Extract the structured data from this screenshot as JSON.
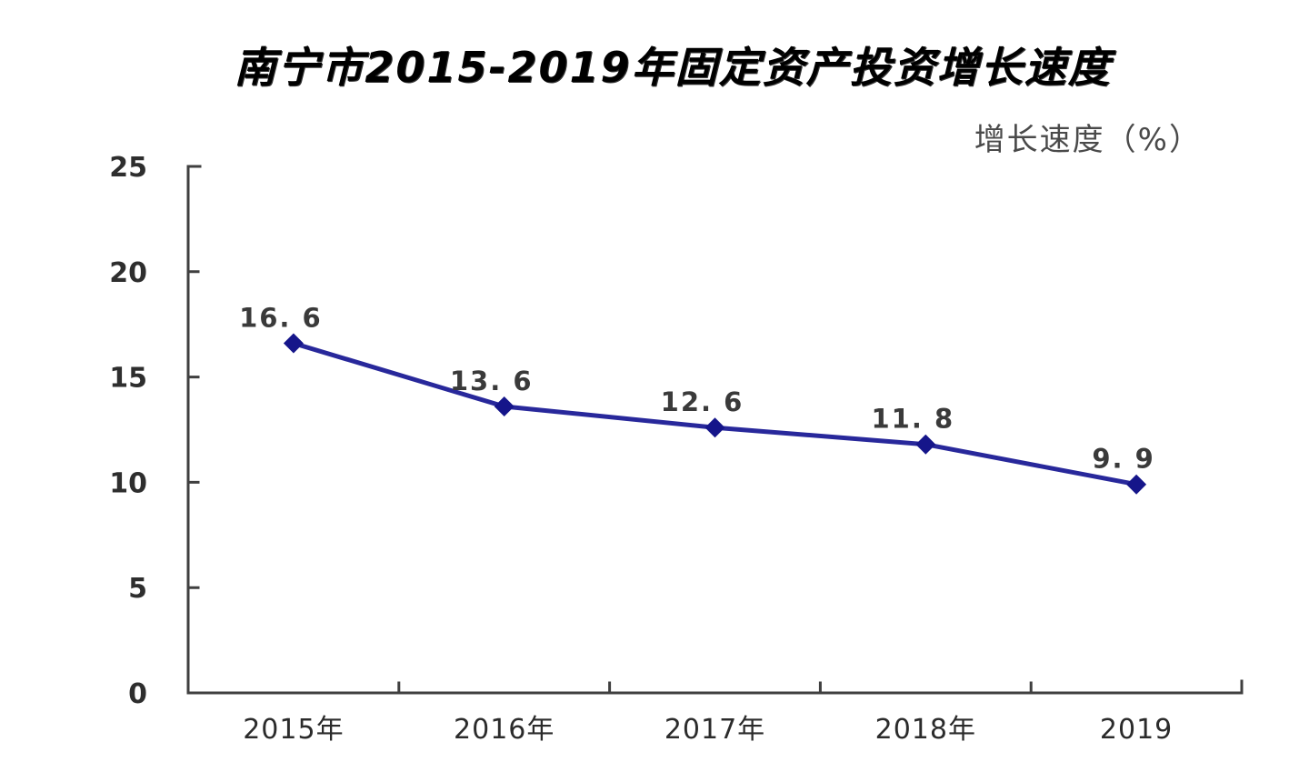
{
  "chart_data": {
    "type": "line",
    "title": "南宁市2015-2019年固定资产投资增长速度",
    "ylabel": "增长速度（%）",
    "categories": [
      "2015年",
      "2016年",
      "2017年",
      "2018年",
      "2019"
    ],
    "values": [
      16.6,
      13.6,
      12.6,
      11.8,
      9.9
    ],
    "point_labels": [
      "16. 6",
      "13. 6",
      "12. 6",
      "11. 8",
      "9. 9"
    ],
    "series_name": "增长速度",
    "ylim": [
      0,
      25
    ],
    "yticks": [
      0,
      5,
      10,
      15,
      20,
      25
    ],
    "grid": false,
    "legend_position": "none",
    "marker": "diamond",
    "colors": {
      "line": "#28289b",
      "marker": "#15158a",
      "axis": "#3f3f3f",
      "tick_label": "#2e2e2e",
      "data_label": "#3a3a3a",
      "title": "#000000",
      "unit_label": "#4a4a4a",
      "background": "#ffffff"
    }
  }
}
